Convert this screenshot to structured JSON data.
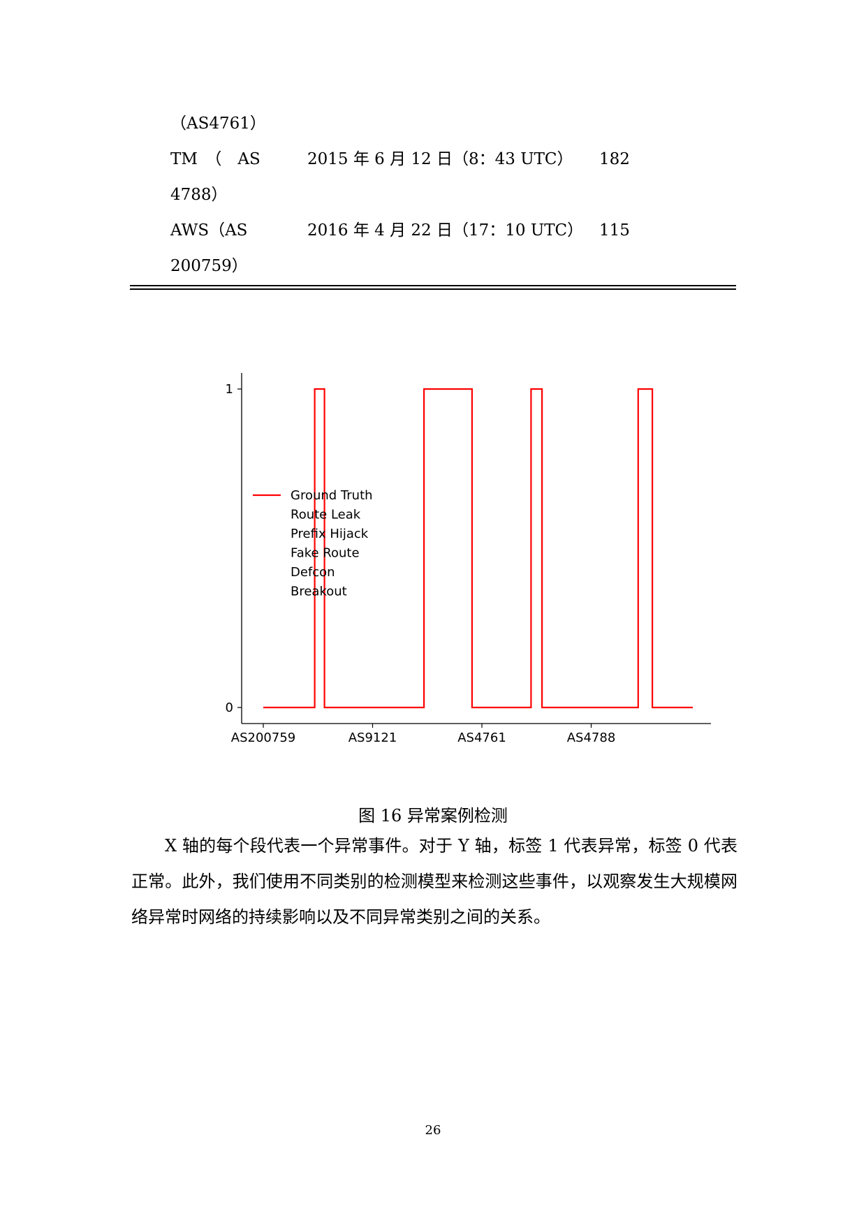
{
  "table": {
    "rows": [
      {
        "name_line1": "（AS4761）",
        "name_line2": "",
        "date": "",
        "count": ""
      },
      {
        "name_line1": "TM　（　AS",
        "name_line2": "4788）",
        "date": "2015 年 6 月 12 日（8：43 UTC）",
        "count": "182"
      },
      {
        "name_line1": "AWS（AS",
        "name_line2": "200759）",
        "date": "2016 年 4 月 22 日（17：10 UTC）",
        "count": "115"
      }
    ]
  },
  "chart_data": {
    "type": "line",
    "categories": [
      "AS200759",
      "AS9121",
      "AS4761",
      "AS4788"
    ],
    "yticks": [
      "0",
      "1"
    ],
    "ylim": [
      0,
      1
    ],
    "series": [
      {
        "name": "Ground Truth",
        "color": "#ff0000",
        "x": [
          0,
          0.47,
          0.47,
          0.56,
          0.56,
          1.47,
          1.47,
          1.91,
          1.91,
          2.45,
          2.45,
          2.55,
          2.55,
          3.43,
          3.43,
          3.56,
          3.56,
          3.93
        ],
        "y": [
          0,
          0,
          1,
          1,
          0,
          0,
          1,
          1,
          0,
          0,
          1,
          1,
          0,
          0,
          1,
          1,
          0,
          0
        ]
      }
    ],
    "legend": {
      "placement": "center-left",
      "entries": [
        "Ground Truth",
        "Route Leak",
        "Prefix Hijack",
        "Fake Route",
        "Defcon",
        "Breakout"
      ]
    }
  },
  "caption": "图 16 异常案例检测",
  "paragraph": "X 轴的每个段代表一个异常事件。对于 Y 轴，标签 1 代表异常，标签 0 代表正常。此外，我们使用不同类别的检测模型来检测这些事件，以观察发生大规模网络异常时网络的持续影响以及不同异常类别之间的关系。",
  "page_number": "26"
}
